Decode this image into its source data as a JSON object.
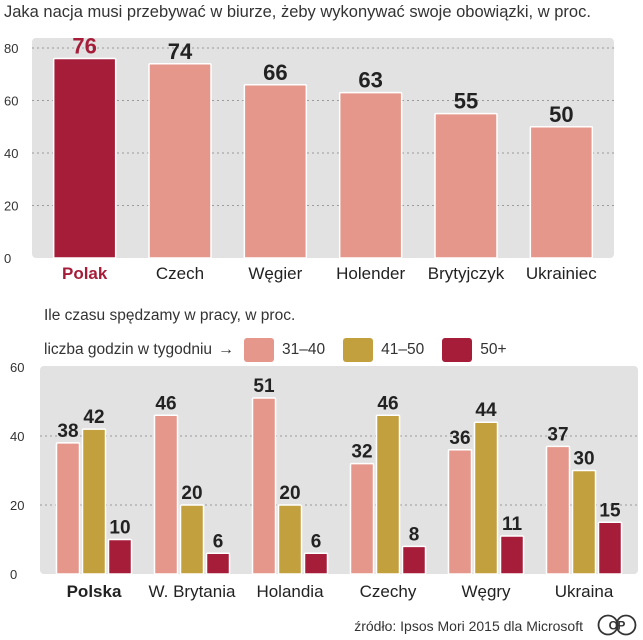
{
  "colors": {
    "panel": "#e2e2e2",
    "grid": "#9b9b9b",
    "bar_light": "#e4978a",
    "bar_dark": "#a61d3a",
    "bar_gold": "#c2a03e",
    "bar_gold_stroke": "#ffffff",
    "highlight_text": "#a61d3a"
  },
  "chart_data": [
    {
      "type": "bar",
      "title": "Jaka nacja musi przebywać w biurze, żeby wykonywać swoje obowiązki, w proc.",
      "categories": [
        "Polak",
        "Czech",
        "Węgier",
        "Holender",
        "Brytyjczyk",
        "Ukrainiec"
      ],
      "values": [
        76,
        74,
        66,
        63,
        55,
        50
      ],
      "value_labels": [
        "76",
        "74",
        "66",
        "63",
        "55",
        "50"
      ],
      "highlight_index": 0,
      "ylim": [
        0,
        80
      ],
      "yticks": [
        0,
        20,
        40,
        60,
        80
      ],
      "ytick_labels": [
        "0",
        "20",
        "40",
        "60",
        "80"
      ],
      "grid": true
    },
    {
      "type": "bar",
      "title": "Ile czasu spędzamy w pracy, w proc.",
      "legend_title": "liczba godzin w tygodniu",
      "legend_arrow": "→",
      "categories": [
        "Polska",
        "W. Brytania",
        "Holandia",
        "Czechy",
        "Węgry",
        "Ukraina"
      ],
      "highlight_index": 0,
      "series": [
        {
          "name": "31–40",
          "values": [
            38,
            46,
            51,
            32,
            36,
            37
          ],
          "value_labels": [
            "38",
            "46",
            "51",
            "32",
            "36",
            "37"
          ]
        },
        {
          "name": "41–50",
          "values": [
            42,
            20,
            20,
            46,
            44,
            30
          ],
          "value_labels": [
            "42",
            "20",
            "20",
            "46",
            "44",
            "30"
          ]
        },
        {
          "name": "50+",
          "values": [
            10,
            6,
            6,
            8,
            11,
            15
          ],
          "value_labels": [
            "10",
            "6",
            "6",
            "8",
            "11",
            "15"
          ]
        }
      ],
      "ylim": [
        0,
        60
      ],
      "yticks": [
        0,
        20,
        40,
        60
      ],
      "ytick_labels": [
        "0",
        "20",
        "40",
        "60"
      ],
      "grid": true
    }
  ],
  "footer": {
    "source": "źródło: Ipsos Mori 2015 dla Microsoft",
    "logo_text": "CP"
  }
}
